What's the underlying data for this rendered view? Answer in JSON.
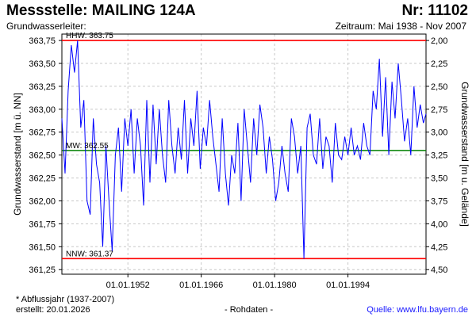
{
  "header": {
    "title": "Messstelle: MAILING 124A",
    "number": "Nr: 11102",
    "aquifer": "Grundwasserleiter:",
    "period": "Zeitraum: Mai 1938 - Nov 2007"
  },
  "footer": {
    "footnote": "* Abflussjahr (1937-2007)",
    "created": "erstellt:  20.01.2026",
    "raw": "- Rohdaten -",
    "source": "Quelle:  www.lfu.bayern.de"
  },
  "colors": {
    "series": "#0000ff",
    "hhw": "#ff0000",
    "nnw": "#ff0000",
    "mw": "#008000",
    "grid": "#c8c8c8"
  },
  "chart_data": {
    "type": "line",
    "ylabel": "Grundwasserstand [m ü. NN]",
    "ylabel_right": "Grundwasserstand [m u. Gelände]",
    "ylim": [
      361.2,
      363.82
    ],
    "yticks": [
      {
        "v": 363.75,
        "t": "363,75"
      },
      {
        "v": 363.5,
        "t": "363,50"
      },
      {
        "v": 363.25,
        "t": "363,25"
      },
      {
        "v": 363.0,
        "t": "363,00"
      },
      {
        "v": 362.75,
        "t": "362,75"
      },
      {
        "v": 362.5,
        "t": "362,50"
      },
      {
        "v": 362.25,
        "t": "362,25"
      },
      {
        "v": 362.0,
        "t": "362,00"
      },
      {
        "v": 361.75,
        "t": "361,75"
      },
      {
        "v": 361.5,
        "t": "361,50"
      },
      {
        "v": 361.25,
        "t": "361,25"
      }
    ],
    "yticks_right": [
      "2,00",
      "2,25",
      "2,50",
      "2,75",
      "3,00",
      "3,25",
      "3,50",
      "3,75",
      "4,00",
      "4,25",
      "4,50"
    ],
    "xlim": [
      1938.4,
      2007.9
    ],
    "xticks": [
      {
        "v": 1951.0,
        "t": "01.01.1952"
      },
      {
        "v": 1965.0,
        "t": "01.01.1966"
      },
      {
        "v": 1979.0,
        "t": "01.01.1980"
      },
      {
        "v": 1993.0,
        "t": "01.01.1994"
      }
    ],
    "reference_lines": [
      {
        "name": "HHW",
        "label": "HHW: 363.75",
        "value": 363.75
      },
      {
        "name": "MW",
        "label": "MW: 362.55",
        "value": 362.55
      },
      {
        "name": "NNW",
        "label": "NNW: 361.37",
        "value": 361.37
      }
    ],
    "series": [
      {
        "x": [
          1938.4,
          1939.0,
          1939.6,
          1940.2,
          1940.8,
          1941.4,
          1942.0,
          1942.6,
          1943.2,
          1943.8,
          1944.4,
          1945.0,
          1945.6,
          1946.2,
          1946.8,
          1947.4,
          1948.0,
          1948.6,
          1949.2,
          1949.8,
          1950.4,
          1951.0,
          1951.6,
          1952.2,
          1952.8,
          1953.4,
          1954.0,
          1954.6,
          1955.2,
          1955.8,
          1956.4,
          1957.0,
          1957.6,
          1958.2,
          1958.8,
          1959.4,
          1960.0,
          1960.6,
          1961.2,
          1961.8,
          1962.4,
          1963.0,
          1963.6,
          1964.2,
          1964.8,
          1965.4,
          1966.0,
          1966.6,
          1967.2,
          1967.8,
          1968.4,
          1969.0,
          1969.6,
          1970.2,
          1970.8,
          1971.4,
          1972.0,
          1972.6,
          1973.2,
          1973.8,
          1974.4,
          1975.0,
          1975.6,
          1976.2,
          1976.8,
          1977.4,
          1978.0,
          1978.6,
          1979.2,
          1979.8,
          1980.4,
          1981.0,
          1981.6,
          1982.2,
          1982.8,
          1983.4,
          1984.0,
          1984.6,
          1985.2,
          1985.8,
          1986.4,
          1987.0,
          1987.6,
          1988.2,
          1988.8,
          1989.4,
          1990.0,
          1990.6,
          1991.2,
          1991.8,
          1992.4,
          1993.0,
          1993.6,
          1994.2,
          1994.8,
          1995.4,
          1996.0,
          1996.6,
          1997.2,
          1997.8,
          1998.4,
          1999.0,
          1999.6,
          2000.2,
          2000.8,
          2001.4,
          2002.0,
          2002.6,
          2003.2,
          2003.8,
          2004.4,
          2005.0,
          2005.6,
          2006.2,
          2006.8,
          2007.4,
          2007.9
        ],
        "values": [
          362.9,
          362.3,
          363.2,
          363.7,
          363.4,
          363.75,
          362.8,
          363.1,
          362.0,
          361.85,
          362.9,
          362.4,
          362.2,
          361.5,
          362.6,
          362.0,
          361.45,
          362.5,
          362.8,
          362.1,
          362.9,
          362.6,
          363.0,
          362.3,
          362.9,
          362.6,
          361.95,
          363.1,
          362.2,
          363.05,
          362.4,
          363.0,
          362.5,
          362.2,
          363.1,
          362.6,
          362.3,
          362.8,
          362.45,
          363.1,
          362.3,
          362.9,
          362.6,
          363.2,
          362.35,
          362.8,
          362.6,
          363.1,
          362.7,
          362.4,
          362.1,
          362.9,
          362.3,
          361.95,
          362.5,
          362.3,
          362.85,
          362.0,
          363.0,
          362.6,
          362.2,
          362.9,
          362.5,
          363.05,
          362.8,
          362.3,
          362.7,
          362.45,
          362.0,
          362.2,
          362.6,
          362.3,
          362.1,
          362.9,
          362.7,
          362.3,
          362.6,
          361.37,
          362.8,
          362.95,
          362.5,
          362.4,
          362.9,
          362.35,
          362.7,
          362.6,
          362.2,
          362.85,
          362.5,
          362.45,
          362.7,
          362.5,
          362.8,
          362.5,
          362.6,
          362.45,
          362.85,
          362.6,
          362.5,
          363.2,
          363.0,
          363.55,
          362.7,
          363.35,
          362.5,
          363.3,
          362.9,
          363.5,
          363.1,
          362.65,
          362.9,
          362.5,
          363.25,
          362.8,
          363.05,
          362.85,
          362.95
        ]
      }
    ]
  }
}
